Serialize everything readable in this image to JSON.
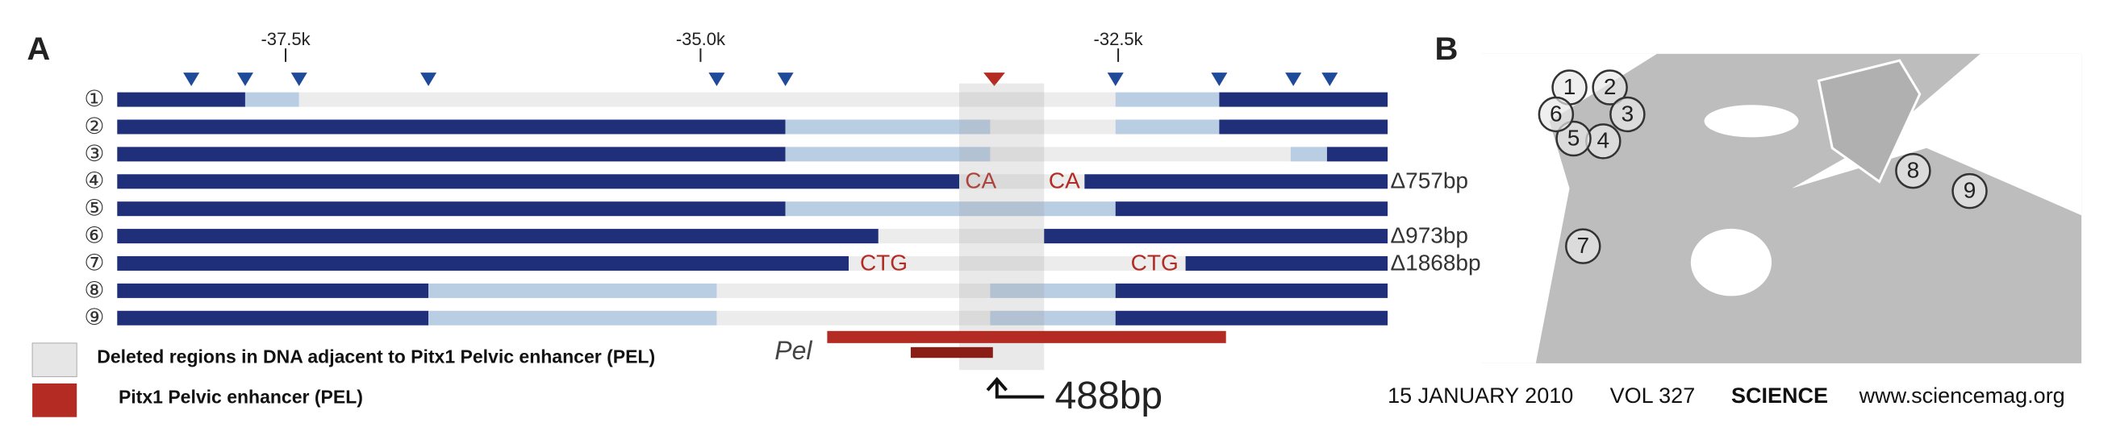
{
  "panel_a": {
    "label": "A",
    "ticks": [
      "-37.5k",
      "-35.0k",
      "-32.5k"
    ],
    "rows": [
      {
        "label": "①"
      },
      {
        "label": "②"
      },
      {
        "label": "③"
      },
      {
        "label": "④",
        "left_mark": "CA",
        "right_mark": "CA",
        "deletion": "Δ757bp"
      },
      {
        "label": "⑤"
      },
      {
        "label": "⑥",
        "deletion": "Δ973bp"
      },
      {
        "label": "⑦",
        "left_mark": "CTG",
        "right_mark": "CTG",
        "deletion": "Δ1868bp"
      },
      {
        "label": "⑧"
      },
      {
        "label": "⑨"
      }
    ],
    "enhancer_label": "Pel",
    "enhancer_size": "488bp",
    "legend": [
      "Deleted regions in DNA adjacent to Pitx1 Pelvic enhancer (PEL)",
      "Pitx1 Pelvic enhancer (PEL)"
    ]
  },
  "panel_b": {
    "label": "B",
    "sites": [
      "1",
      "2",
      "3",
      "4",
      "5",
      "6",
      "7",
      "8",
      "9"
    ]
  },
  "footer": {
    "date": "15 JANUARY 2010",
    "volume": "VOL 327",
    "journal": "SCIENCE",
    "url": "www.sciencemag.org"
  }
}
